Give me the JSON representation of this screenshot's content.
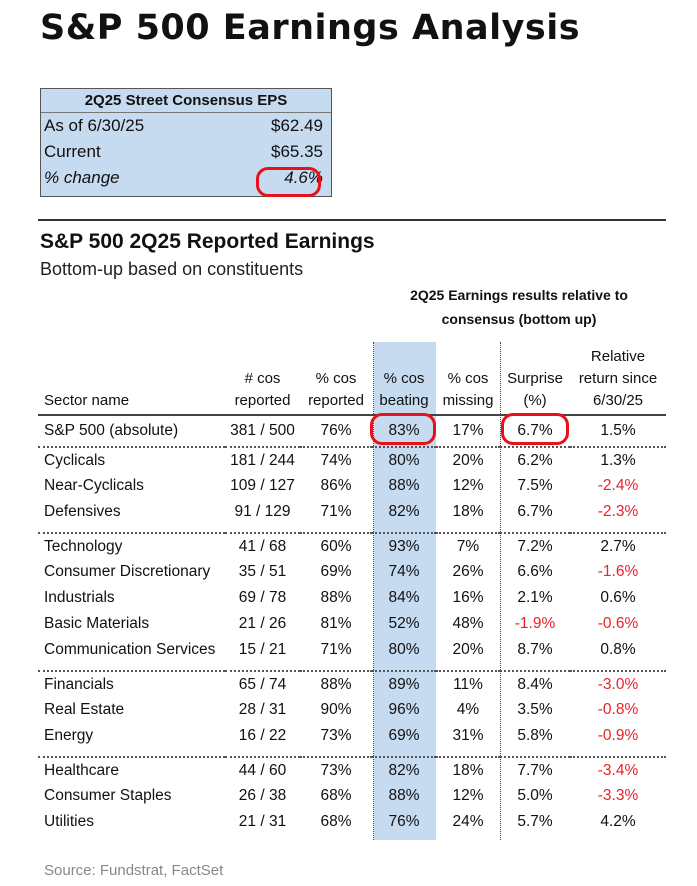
{
  "title": "S&P 500 Earnings Analysis",
  "eps_box": {
    "header": "2Q25 Street Consensus EPS",
    "rows": [
      {
        "label": "As of 6/30/25",
        "value": "$62.49"
      },
      {
        "label": "Current",
        "value": "$65.35"
      },
      {
        "label": "% change",
        "value": "4.6%"
      }
    ]
  },
  "section": {
    "title": "S&P 500 2Q25 Reported Earnings",
    "subtitle": "Bottom-up based on constituents",
    "group_header": "2Q25 Earnings results relative to consensus (bottom up)"
  },
  "colors": {
    "highlight_band": "#c6daf0",
    "negative": "#e8222c",
    "circle": "#e8101a"
  },
  "columns": [
    "Sector name",
    "# cos reported",
    "% cos reported",
    "% cos beating",
    "% cos missing",
    "Surprise (%)",
    "Relative return since 6/30/25"
  ],
  "total": [
    "S&P 500 (absolute)",
    "381 / 500",
    "76%",
    "83%",
    "17%",
    "6.7%",
    "1.5%"
  ],
  "groups": [
    [
      [
        "Cyclicals",
        "181 / 244",
        "74%",
        "80%",
        "20%",
        "6.2%",
        "1.3%"
      ],
      [
        "Near-Cyclicals",
        "109 / 127",
        "86%",
        "88%",
        "12%",
        "7.5%",
        "-2.4%"
      ],
      [
        "Defensives",
        "91 / 129",
        "71%",
        "82%",
        "18%",
        "6.7%",
        "-2.3%"
      ]
    ],
    [
      [
        "Technology",
        "41 / 68",
        "60%",
        "93%",
        "7%",
        "7.2%",
        "2.7%"
      ],
      [
        "Consumer Discretionary",
        "35 / 51",
        "69%",
        "74%",
        "26%",
        "6.6%",
        "-1.6%"
      ],
      [
        "Industrials",
        "69 / 78",
        "88%",
        "84%",
        "16%",
        "2.1%",
        "0.6%"
      ],
      [
        "Basic Materials",
        "21 / 26",
        "81%",
        "52%",
        "48%",
        "-1.9%",
        "-0.6%"
      ],
      [
        "Communication Services",
        "15 / 21",
        "71%",
        "80%",
        "20%",
        "8.7%",
        "0.8%"
      ]
    ],
    [
      [
        "Financials",
        "65 / 74",
        "88%",
        "89%",
        "11%",
        "8.4%",
        "-3.0%"
      ],
      [
        "Real Estate",
        "28 / 31",
        "90%",
        "96%",
        "4%",
        "3.5%",
        "-0.8%"
      ],
      [
        "Energy",
        "16 / 22",
        "73%",
        "69%",
        "31%",
        "5.8%",
        "-0.9%"
      ]
    ],
    [
      [
        "Healthcare",
        "44 / 60",
        "73%",
        "82%",
        "18%",
        "7.7%",
        "-3.4%"
      ],
      [
        "Consumer Staples",
        "26 / 38",
        "68%",
        "88%",
        "12%",
        "5.0%",
        "-3.3%"
      ],
      [
        "Utilities",
        "21 / 31",
        "68%",
        "76%",
        "24%",
        "5.7%",
        "4.2%"
      ]
    ]
  ],
  "source": "Source: Fundstrat, FactSet"
}
